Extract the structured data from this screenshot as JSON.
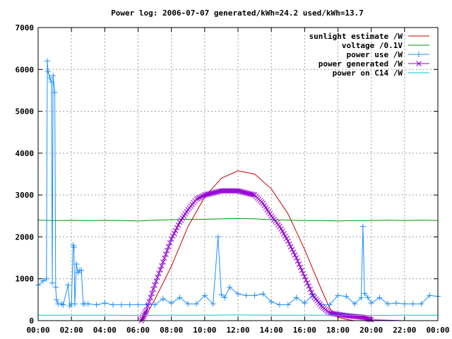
{
  "chart_data": {
    "type": "line",
    "title": "Power log: 2006-07-07 generated/kWh=24.2 used/kWh=13.7",
    "xlabel": "",
    "ylabel": "",
    "xlim": [
      0,
      24
    ],
    "ylim": [
      0,
      7000
    ],
    "grid": true,
    "legend_position": "top-right",
    "x_ticks": [
      {
        "value": 0,
        "label": "00:00"
      },
      {
        "value": 2,
        "label": "02:00"
      },
      {
        "value": 4,
        "label": "04:00"
      },
      {
        "value": 6,
        "label": "06:00"
      },
      {
        "value": 8,
        "label": "08:00"
      },
      {
        "value": 10,
        "label": "10:00"
      },
      {
        "value": 12,
        "label": "12:00"
      },
      {
        "value": 14,
        "label": "14:00"
      },
      {
        "value": 16,
        "label": "16:00"
      },
      {
        "value": 18,
        "label": "18:00"
      },
      {
        "value": 20,
        "label": "20:00"
      },
      {
        "value": 22,
        "label": "22:00"
      },
      {
        "value": 24,
        "label": "00:00"
      }
    ],
    "y_ticks": [
      {
        "value": 0,
        "label": "0"
      },
      {
        "value": 1000,
        "label": "1000"
      },
      {
        "value": 2000,
        "label": "2000"
      },
      {
        "value": 3000,
        "label": "3000"
      },
      {
        "value": 4000,
        "label": "4000"
      },
      {
        "value": 5000,
        "label": "5000"
      },
      {
        "value": 6000,
        "label": "6000"
      },
      {
        "value": 7000,
        "label": "7000"
      }
    ],
    "series": [
      {
        "name": "sunlight estimate /W",
        "color": "#cc0000",
        "style": "line",
        "x": [
          6.3,
          7,
          8,
          9,
          10,
          11,
          12,
          13,
          14,
          15,
          16,
          17,
          17.5,
          18,
          18.5,
          19,
          20,
          24
        ],
        "y": [
          0,
          500,
          1300,
          2250,
          2950,
          3400,
          3580,
          3500,
          3150,
          2550,
          1700,
          750,
          300,
          80,
          30,
          0,
          0,
          0
        ]
      },
      {
        "name": "voltage /0.1V",
        "color": "#009900",
        "style": "line",
        "x": [
          0,
          1,
          2,
          3,
          4,
          5,
          6,
          7,
          8,
          9,
          10,
          11,
          12,
          13,
          14,
          15,
          16,
          17,
          18,
          19,
          20,
          21,
          22,
          23,
          24
        ],
        "y": [
          2400,
          2390,
          2395,
          2390,
          2395,
          2390,
          2380,
          2400,
          2410,
          2420,
          2420,
          2430,
          2440,
          2430,
          2410,
          2400,
          2390,
          2390,
          2380,
          2390,
          2390,
          2400,
          2390,
          2400,
          2390
        ]
      },
      {
        "name": "power use /W",
        "color": "#1e90ff",
        "style": "linepoints",
        "x": [
          0,
          0.3,
          0.5,
          0.55,
          0.6,
          0.7,
          0.8,
          0.85,
          0.9,
          1.0,
          1.05,
          1.1,
          1.2,
          1.4,
          1.5,
          1.8,
          1.9,
          2.0,
          2.1,
          2.15,
          2.2,
          2.3,
          2.4,
          2.5,
          2.6,
          2.7,
          2.8,
          3.0,
          3.5,
          4.0,
          4.5,
          5.0,
          5.5,
          6.0,
          6.5,
          7.0,
          7.5,
          8.0,
          8.5,
          9.0,
          9.5,
          10.0,
          10.5,
          10.8,
          11.0,
          11.2,
          11.5,
          12.0,
          12.5,
          13.0,
          13.5,
          14.0,
          14.5,
          15.0,
          15.5,
          16.0,
          16.5,
          17.0,
          17.5,
          18.0,
          18.5,
          19.0,
          19.4,
          19.5,
          19.6,
          19.8,
          20.0,
          20.5,
          21.0,
          21.5,
          22.0,
          22.5,
          23.0,
          23.5,
          24.0
        ],
        "y": [
          850,
          950,
          1000,
          6200,
          5950,
          5800,
          5700,
          900,
          5850,
          5450,
          800,
          500,
          400,
          400,
          380,
          850,
          350,
          400,
          1800,
          1750,
          400,
          1350,
          1150,
          1200,
          1200,
          400,
          400,
          400,
          380,
          420,
          380,
          380,
          380,
          380,
          380,
          380,
          520,
          420,
          550,
          400,
          400,
          600,
          400,
          2000,
          620,
          550,
          800,
          640,
          600,
          600,
          640,
          450,
          380,
          380,
          550,
          420,
          620,
          380,
          380,
          600,
          580,
          400,
          550,
          2250,
          650,
          550,
          420,
          550,
          400,
          420,
          400,
          400,
          400,
          600,
          580
        ]
      },
      {
        "name": "power generated /W",
        "color": "#9400d3",
        "style": "points",
        "x": [
          0,
          6.2,
          6.5,
          7,
          7.5,
          8,
          8.5,
          9,
          9.5,
          10,
          10.5,
          11,
          11.5,
          12,
          12.5,
          13,
          13.5,
          14,
          14.5,
          15,
          15.5,
          16,
          16.5,
          17,
          17.5,
          18,
          18.5,
          19,
          19.5,
          20,
          22,
          24
        ],
        "y": [
          0,
          0,
          250,
          850,
          1400,
          1950,
          2350,
          2650,
          2900,
          3000,
          3050,
          3100,
          3100,
          3100,
          3050,
          3000,
          2800,
          2500,
          2250,
          1900,
          1500,
          1050,
          600,
          350,
          180,
          150,
          120,
          100,
          80,
          20,
          0,
          0
        ]
      },
      {
        "name": "power on C14 /W",
        "color": "#00cccc",
        "style": "line",
        "x": [
          0,
          2,
          4,
          6,
          8,
          10,
          12,
          14,
          16,
          18,
          20,
          22,
          24
        ],
        "y": [
          130,
          130,
          130,
          125,
          130,
          130,
          135,
          130,
          130,
          130,
          125,
          130,
          130
        ]
      }
    ]
  }
}
